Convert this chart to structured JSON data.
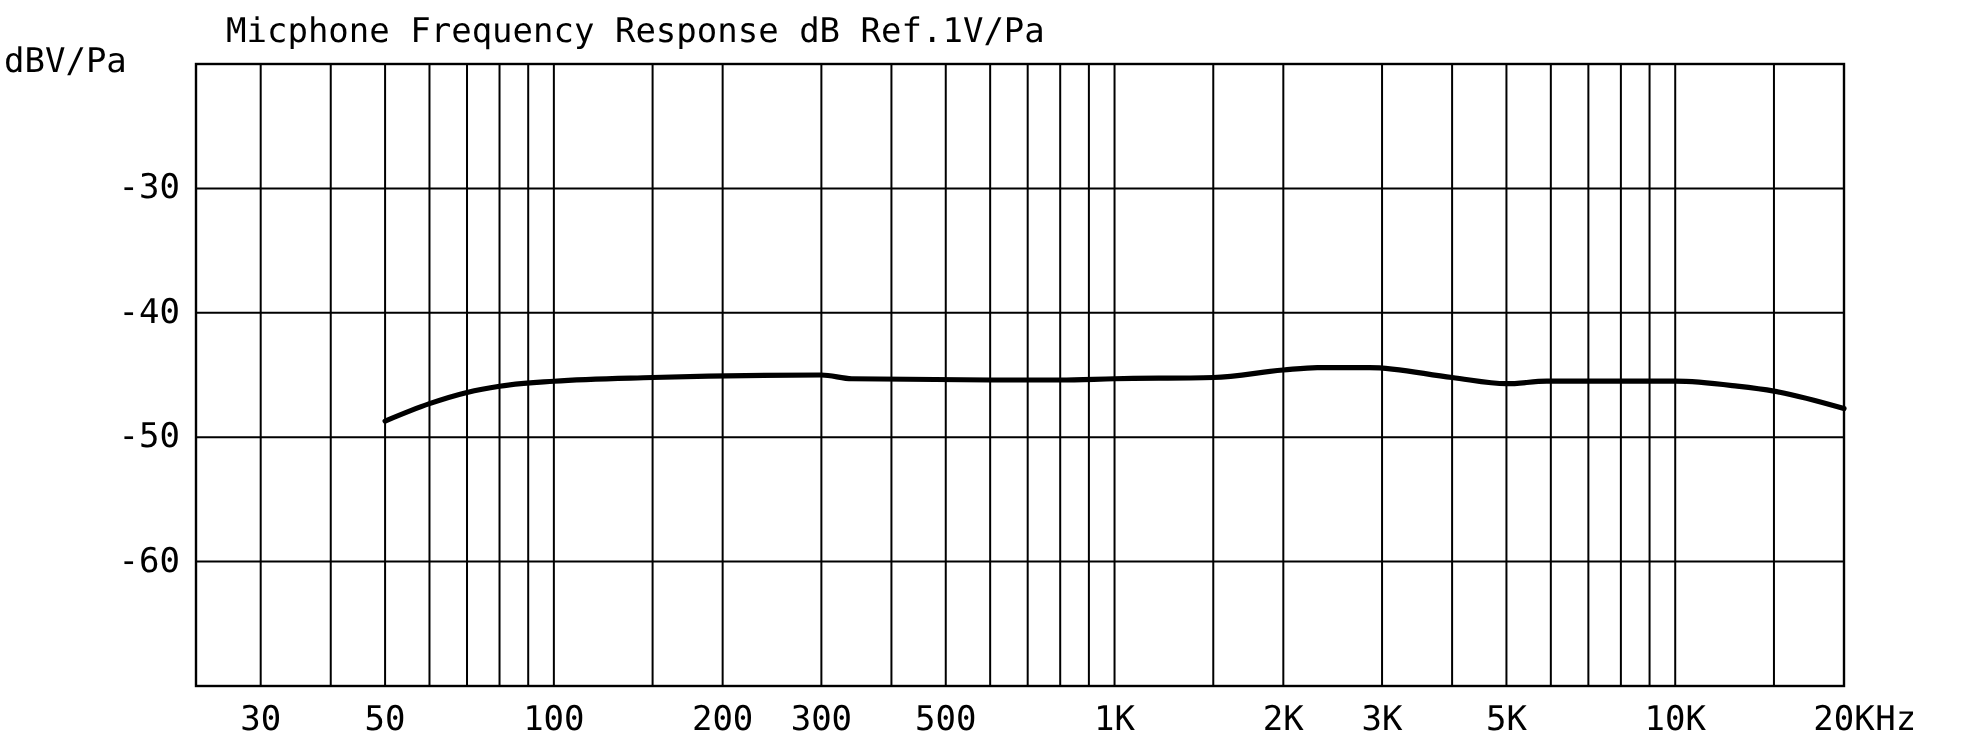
{
  "chart_data": {
    "type": "line",
    "title": "Micphone Frequency Response dB Ref.1V/Pa",
    "ylabel": "dBV/Pa",
    "xlabel": "Hz",
    "log": "x",
    "grid": true,
    "marker": "none",
    "line_style": "solid",
    "xlim": [
      23,
      20000
    ],
    "ylim": [
      -70,
      -20
    ],
    "xticks": [
      30,
      {
        "value": 40,
        "label": null
      },
      50,
      {
        "value": 60,
        "label": null
      },
      {
        "value": 70,
        "label": null
      },
      {
        "value": 80,
        "label": null
      },
      {
        "value": 90,
        "label": null
      },
      100,
      {
        "value": 150,
        "label": null
      },
      200,
      300,
      {
        "value": 400,
        "label": null
      },
      500,
      {
        "value": 600,
        "label": null
      },
      {
        "value": 700,
        "label": null
      },
      {
        "value": 800,
        "label": null
      },
      {
        "value": 900,
        "label": null
      },
      {
        "value": 1000,
        "label": "1K"
      },
      {
        "value": 1500,
        "label": null
      },
      {
        "value": 2000,
        "label": "2K"
      },
      {
        "value": 3000,
        "label": "3K"
      },
      {
        "value": 4000,
        "label": null
      },
      {
        "value": 5000,
        "label": "5K"
      },
      {
        "value": 6000,
        "label": null
      },
      {
        "value": 7000,
        "label": null
      },
      {
        "value": 8000,
        "label": null
      },
      {
        "value": 9000,
        "label": null
      },
      {
        "value": 10000,
        "label": "10K"
      },
      {
        "value": 15000,
        "label": null
      },
      {
        "value": 20000,
        "label": "20K"
      }
    ],
    "yticks": [
      -30,
      -40,
      -50,
      -60
    ],
    "series": [
      {
        "color": "#000000",
        "x": [
          50,
          60,
          70,
          80,
          100,
          150,
          300,
          340,
          600,
          800,
          1000,
          1500,
          2000,
          2300,
          2850,
          4000,
          5000,
          5900,
          10000,
          12900,
          15000,
          20000
        ],
        "values": [
          -48.7,
          -47.3,
          -46.4,
          -45.9,
          -45.5,
          -45.2,
          -45.0,
          -45.3,
          -45.4,
          -45.4,
          -45.3,
          -45.2,
          -44.6,
          -44.4,
          -44.4,
          -45.2,
          -45.7,
          -45.5,
          -45.5,
          -45.9,
          -46.3,
          -47.7
        ]
      }
    ]
  }
}
